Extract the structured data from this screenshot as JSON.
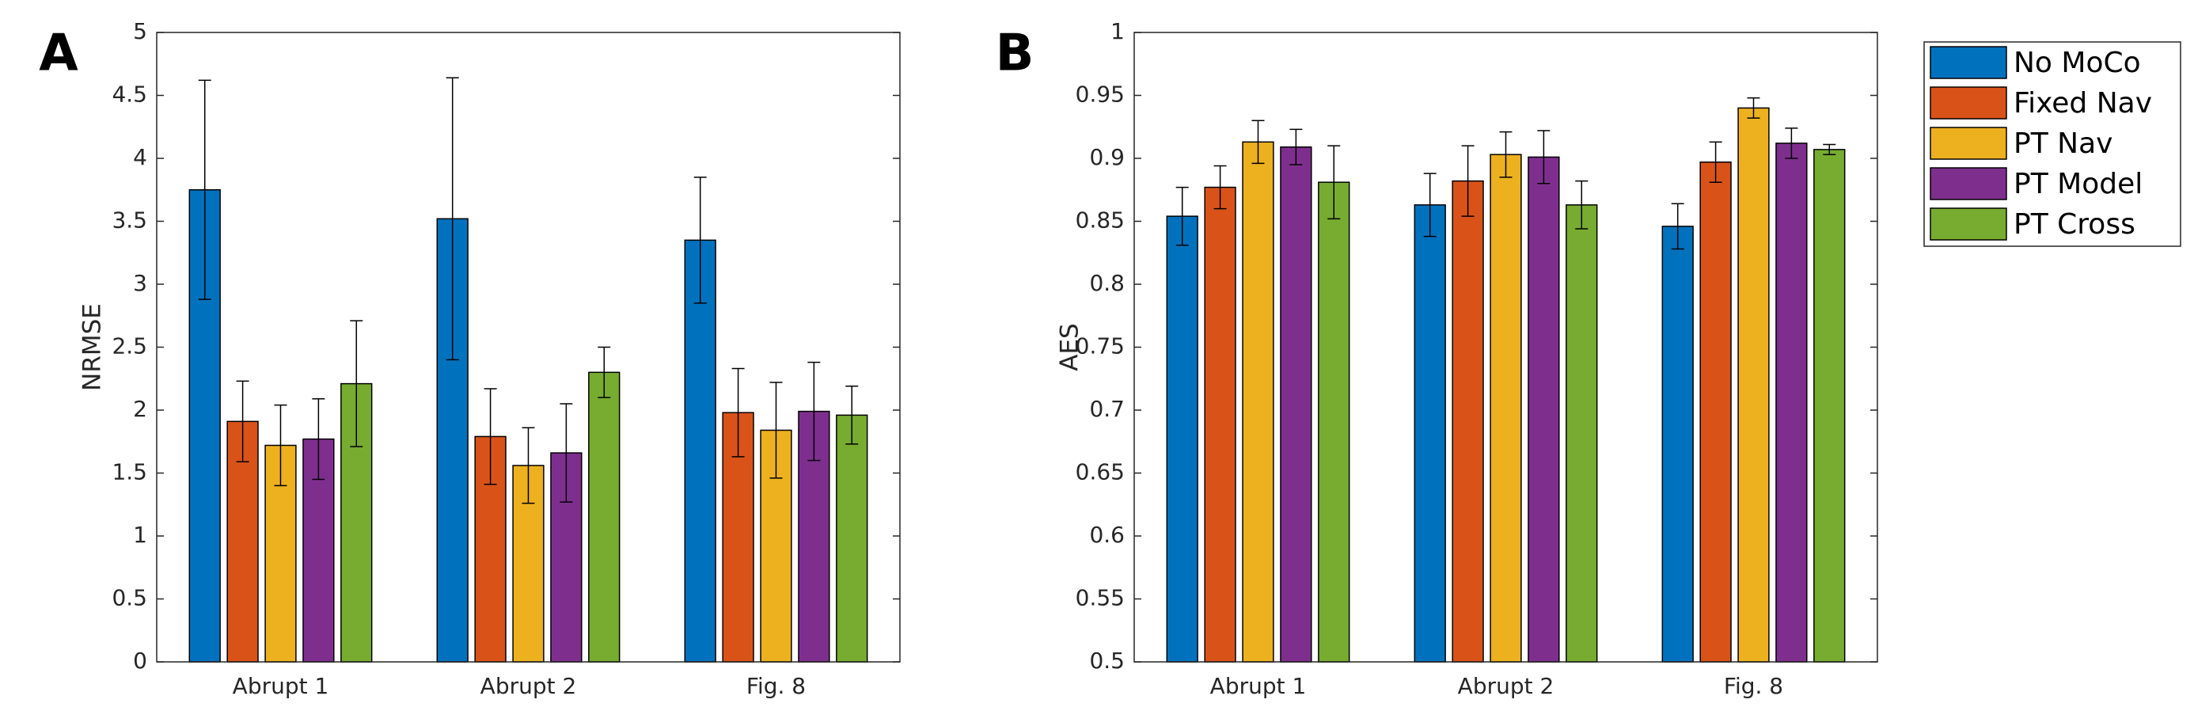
{
  "chart_data": [
    {
      "type": "bar",
      "panel_label": "A",
      "ylabel": "NRMSE",
      "categories": [
        "Abrupt 1",
        "Abrupt 2",
        "Fig. 8"
      ],
      "ylim": [
        0,
        5
      ],
      "yticks": [
        0,
        0.5,
        1,
        1.5,
        2,
        2.5,
        3,
        3.5,
        4,
        4.5,
        5
      ],
      "grid": false,
      "legend": false,
      "series": [
        {
          "color": "#0072BD",
          "values": [
            3.75,
            3.52,
            3.35
          ],
          "errors": [
            0.87,
            1.12,
            0.5
          ]
        },
        {
          "color": "#D95319",
          "values": [
            1.91,
            1.79,
            1.98
          ],
          "errors": [
            0.32,
            0.38,
            0.35
          ]
        },
        {
          "color": "#EDB120",
          "values": [
            1.72,
            1.56,
            1.84
          ],
          "errors": [
            0.32,
            0.3,
            0.38
          ]
        },
        {
          "color": "#7E2F8E",
          "values": [
            1.77,
            1.66,
            1.99
          ],
          "errors": [
            0.32,
            0.39,
            0.39
          ]
        },
        {
          "color": "#77AC30",
          "values": [
            2.21,
            2.3,
            1.96
          ],
          "errors": [
            0.5,
            0.2,
            0.23
          ]
        }
      ]
    },
    {
      "type": "bar",
      "panel_label": "B",
      "ylabel": "AES",
      "categories": [
        "Abrupt 1",
        "Abrupt 2",
        "Fig. 8"
      ],
      "ylim": [
        0.5,
        1
      ],
      "yticks": [
        0.5,
        0.55,
        0.6,
        0.65,
        0.7,
        0.75,
        0.8,
        0.85,
        0.9,
        0.95,
        1
      ],
      "grid": false,
      "legend": "outside right",
      "series": [
        {
          "name": "No MoCo",
          "color": "#0072BD",
          "values": [
            0.854,
            0.863,
            0.846
          ],
          "errors": [
            0.023,
            0.025,
            0.018
          ]
        },
        {
          "name": "Fixed Nav",
          "color": "#D95319",
          "values": [
            0.877,
            0.882,
            0.897
          ],
          "errors": [
            0.017,
            0.028,
            0.016
          ]
        },
        {
          "name": "PT Nav",
          "color": "#EDB120",
          "values": [
            0.913,
            0.903,
            0.94
          ],
          "errors": [
            0.017,
            0.018,
            0.008
          ]
        },
        {
          "name": "PT Model",
          "color": "#7E2F8E",
          "values": [
            0.909,
            0.901,
            0.912
          ],
          "errors": [
            0.014,
            0.021,
            0.012
          ]
        },
        {
          "name": "PT Cross",
          "color": "#77AC30",
          "values": [
            0.881,
            0.863,
            0.907
          ],
          "errors": [
            0.029,
            0.019,
            0.004
          ]
        }
      ]
    }
  ]
}
